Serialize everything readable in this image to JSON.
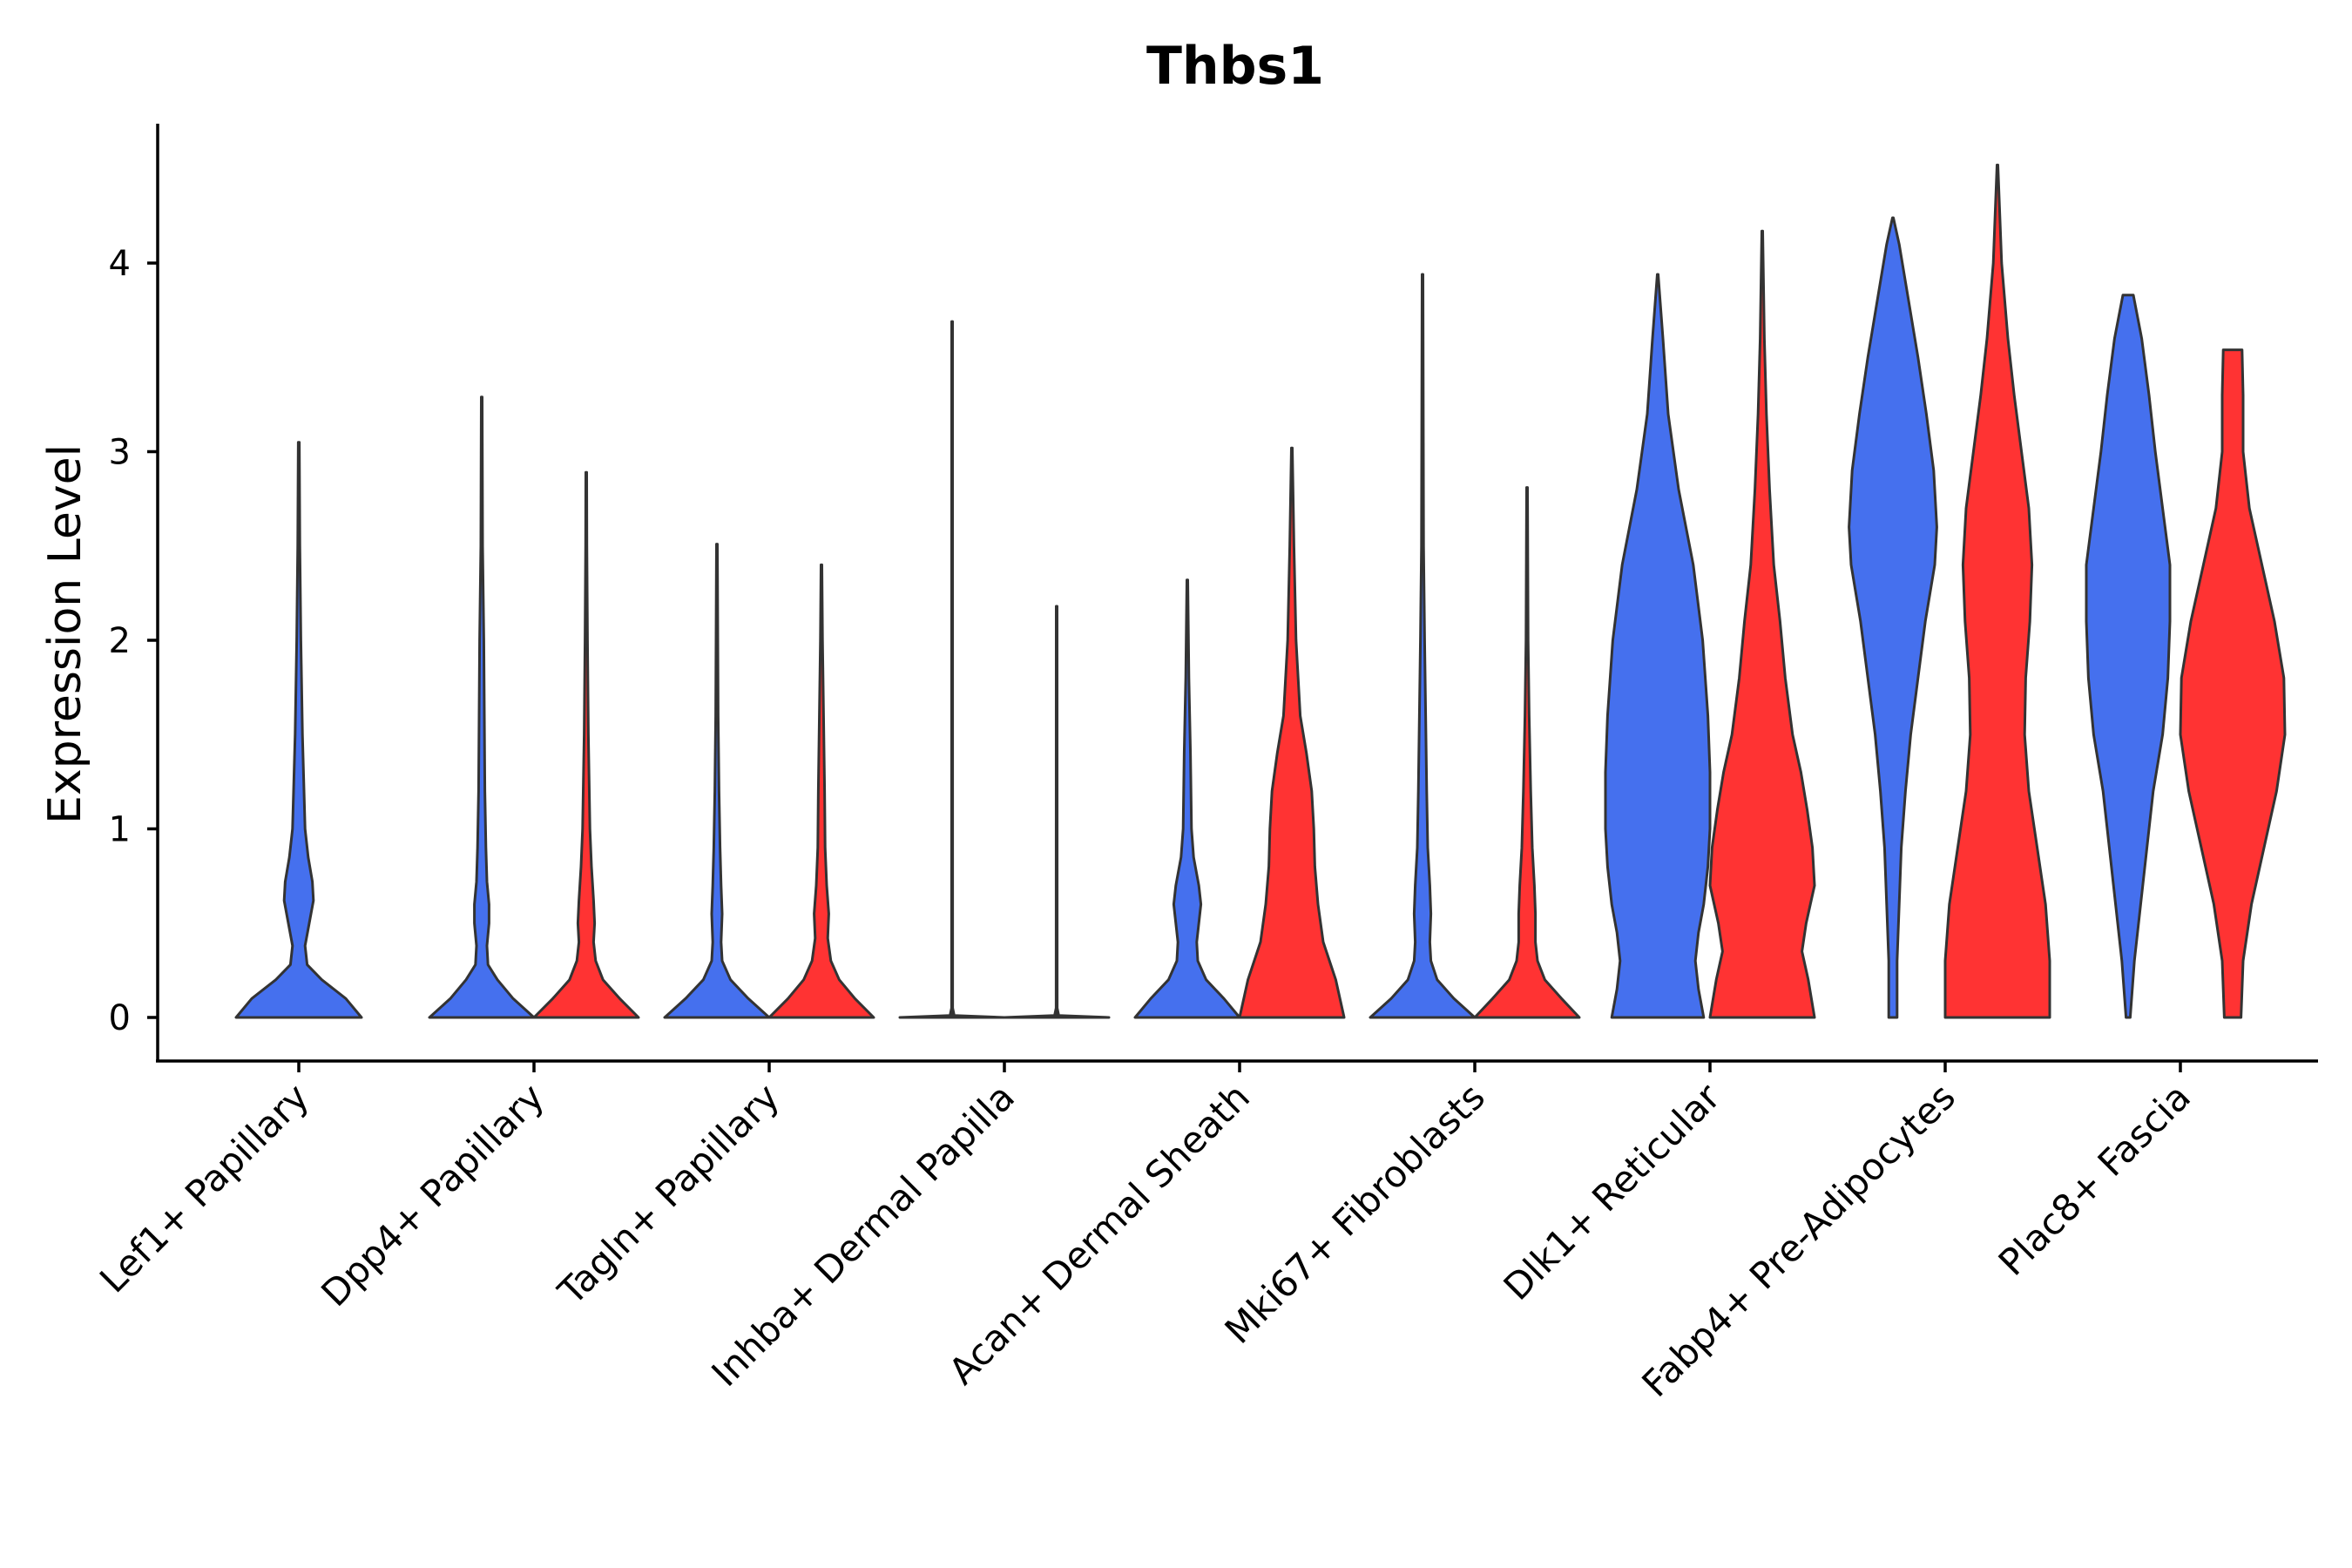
{
  "chart_data": {
    "type": "violin",
    "title": "Thbs1",
    "xlabel": "",
    "ylabel": "Expression Level",
    "ylim": [
      -0.23,
      4.75
    ],
    "yticks": [
      0,
      1,
      2,
      3,
      4
    ],
    "grid": false,
    "legend": "none",
    "colors": {
      "blue": "#4570ee",
      "red": "#ff3333",
      "outline": "#333333"
    },
    "categories": [
      "Lef1+ Papillary",
      "Dpp4+ Papillary",
      "Tagln+ Papillary",
      "Inhba+ Dermal Papilla",
      "Acan+ Dermal Sheath",
      "Mki67+ Fibroblasts",
      "Dlk1+ Reticular",
      "Fabp4+ Pre-Adipocytes",
      "Plac8+ Fascia"
    ],
    "violins": [
      {
        "category": "Lef1+ Papillary",
        "group": "blue",
        "max": 3.05,
        "profile": [
          [
            0,
            0.6
          ],
          [
            0.1,
            0.45
          ],
          [
            0.2,
            0.22
          ],
          [
            0.28,
            0.08
          ],
          [
            0.38,
            0.06
          ],
          [
            0.5,
            0.1
          ],
          [
            0.62,
            0.14
          ],
          [
            0.72,
            0.13
          ],
          [
            0.85,
            0.09
          ],
          [
            1.0,
            0.06
          ],
          [
            1.2,
            0.05
          ],
          [
            1.5,
            0.035
          ],
          [
            2.0,
            0.02
          ],
          [
            2.5,
            0.01
          ],
          [
            3.05,
            0.005
          ]
        ]
      },
      {
        "category": "Dpp4+ Papillary",
        "group": "blue",
        "max": 3.29,
        "profile": [
          [
            0,
            0.5
          ],
          [
            0.1,
            0.3
          ],
          [
            0.2,
            0.15
          ],
          [
            0.28,
            0.06
          ],
          [
            0.38,
            0.05
          ],
          [
            0.5,
            0.07
          ],
          [
            0.6,
            0.07
          ],
          [
            0.72,
            0.05
          ],
          [
            0.9,
            0.04
          ],
          [
            1.2,
            0.03
          ],
          [
            1.6,
            0.025
          ],
          [
            2.0,
            0.02
          ],
          [
            2.5,
            0.008
          ],
          [
            3.29,
            0.004
          ]
        ]
      },
      {
        "category": "Dpp4+ Papillary",
        "group": "red",
        "max": 2.89,
        "profile": [
          [
            0,
            0.5
          ],
          [
            0.1,
            0.32
          ],
          [
            0.2,
            0.16
          ],
          [
            0.3,
            0.09
          ],
          [
            0.4,
            0.07
          ],
          [
            0.5,
            0.08
          ],
          [
            0.62,
            0.07
          ],
          [
            0.8,
            0.05
          ],
          [
            1.0,
            0.035
          ],
          [
            1.5,
            0.02
          ],
          [
            2.0,
            0.012
          ],
          [
            2.5,
            0.006
          ],
          [
            2.89,
            0.004
          ]
        ]
      },
      {
        "category": "Tagln+ Papillary",
        "group": "blue",
        "max": 2.51,
        "profile": [
          [
            0,
            0.5
          ],
          [
            0.1,
            0.3
          ],
          [
            0.2,
            0.13
          ],
          [
            0.3,
            0.05
          ],
          [
            0.4,
            0.04
          ],
          [
            0.55,
            0.05
          ],
          [
            0.7,
            0.04
          ],
          [
            0.9,
            0.03
          ],
          [
            1.2,
            0.02
          ],
          [
            1.6,
            0.012
          ],
          [
            2.0,
            0.008
          ],
          [
            2.51,
            0.004
          ]
        ]
      },
      {
        "category": "Tagln+ Papillary",
        "group": "red",
        "max": 2.4,
        "profile": [
          [
            0,
            0.5
          ],
          [
            0.1,
            0.32
          ],
          [
            0.2,
            0.17
          ],
          [
            0.3,
            0.09
          ],
          [
            0.42,
            0.06
          ],
          [
            0.55,
            0.07
          ],
          [
            0.7,
            0.05
          ],
          [
            0.9,
            0.035
          ],
          [
            1.2,
            0.03
          ],
          [
            1.6,
            0.02
          ],
          [
            2.0,
            0.01
          ],
          [
            2.4,
            0.004
          ]
        ]
      },
      {
        "category": "Inhba+ Dermal Papilla",
        "group": "blue",
        "max": 3.69,
        "profile": [
          [
            0,
            0.5
          ],
          [
            0.01,
            0.02
          ],
          [
            0.05,
            0.005
          ],
          [
            3.69,
            0.004
          ]
        ]
      },
      {
        "category": "Inhba+ Dermal Papilla",
        "group": "red",
        "max": 2.18,
        "profile": [
          [
            0,
            0.5
          ],
          [
            0.01,
            0.02
          ],
          [
            0.05,
            0.005
          ],
          [
            2.18,
            0.004
          ]
        ]
      },
      {
        "category": "Acan+ Dermal Sheath",
        "group": "blue",
        "max": 2.32,
        "profile": [
          [
            0,
            0.5
          ],
          [
            0.1,
            0.35
          ],
          [
            0.2,
            0.18
          ],
          [
            0.3,
            0.1
          ],
          [
            0.4,
            0.09
          ],
          [
            0.5,
            0.11
          ],
          [
            0.6,
            0.13
          ],
          [
            0.7,
            0.11
          ],
          [
            0.85,
            0.06
          ],
          [
            1.0,
            0.04
          ],
          [
            1.4,
            0.03
          ],
          [
            1.8,
            0.015
          ],
          [
            2.32,
            0.004
          ]
        ]
      },
      {
        "category": "Acan+ Dermal Sheath",
        "group": "red",
        "max": 3.02,
        "profile": [
          [
            0,
            0.5
          ],
          [
            0.2,
            0.42
          ],
          [
            0.4,
            0.3
          ],
          [
            0.6,
            0.25
          ],
          [
            0.8,
            0.22
          ],
          [
            1.0,
            0.21
          ],
          [
            1.2,
            0.19
          ],
          [
            1.4,
            0.14
          ],
          [
            1.6,
            0.08
          ],
          [
            2.0,
            0.04
          ],
          [
            2.5,
            0.02
          ],
          [
            3.02,
            0.004
          ]
        ]
      },
      {
        "category": "Mki67+ Fibroblasts",
        "group": "blue",
        "max": 3.94,
        "profile": [
          [
            0,
            0.5
          ],
          [
            0.1,
            0.3
          ],
          [
            0.2,
            0.14
          ],
          [
            0.3,
            0.08
          ],
          [
            0.4,
            0.07
          ],
          [
            0.55,
            0.08
          ],
          [
            0.7,
            0.07
          ],
          [
            0.9,
            0.05
          ],
          [
            1.2,
            0.04
          ],
          [
            1.6,
            0.03
          ],
          [
            2.0,
            0.02
          ],
          [
            2.5,
            0.01
          ],
          [
            3.94,
            0.004
          ]
        ]
      },
      {
        "category": "Mki67+ Fibroblasts",
        "group": "red",
        "max": 2.81,
        "profile": [
          [
            0,
            0.5
          ],
          [
            0.1,
            0.33
          ],
          [
            0.2,
            0.17
          ],
          [
            0.3,
            0.1
          ],
          [
            0.4,
            0.08
          ],
          [
            0.55,
            0.08
          ],
          [
            0.7,
            0.07
          ],
          [
            0.9,
            0.05
          ],
          [
            1.2,
            0.035
          ],
          [
            1.6,
            0.02
          ],
          [
            2.0,
            0.01
          ],
          [
            2.81,
            0.004
          ]
        ]
      },
      {
        "category": "Dlk1+ Reticular",
        "group": "blue",
        "max": 3.94,
        "profile": [
          [
            0,
            0.44
          ],
          [
            0.15,
            0.39
          ],
          [
            0.3,
            0.36
          ],
          [
            0.45,
            0.39
          ],
          [
            0.6,
            0.44
          ],
          [
            0.8,
            0.48
          ],
          [
            1.0,
            0.5
          ],
          [
            1.3,
            0.5
          ],
          [
            1.6,
            0.48
          ],
          [
            2.0,
            0.43
          ],
          [
            2.4,
            0.34
          ],
          [
            2.8,
            0.2
          ],
          [
            3.2,
            0.1
          ],
          [
            3.6,
            0.05
          ],
          [
            3.94,
            0.004
          ]
        ]
      },
      {
        "category": "Dlk1+ Reticular",
        "group": "red",
        "max": 4.17,
        "profile": [
          [
            0,
            0.5
          ],
          [
            0.2,
            0.44
          ],
          [
            0.35,
            0.38
          ],
          [
            0.5,
            0.42
          ],
          [
            0.7,
            0.5
          ],
          [
            0.9,
            0.48
          ],
          [
            1.1,
            0.43
          ],
          [
            1.3,
            0.37
          ],
          [
            1.5,
            0.29
          ],
          [
            1.8,
            0.22
          ],
          [
            2.1,
            0.17
          ],
          [
            2.4,
            0.11
          ],
          [
            2.8,
            0.07
          ],
          [
            3.2,
            0.04
          ],
          [
            3.6,
            0.02
          ],
          [
            4.17,
            0.004
          ]
        ]
      },
      {
        "category": "Fabp4+ Pre-Adipocytes",
        "group": "blue",
        "max": 4.24,
        "profile": [
          [
            0,
            0.04
          ],
          [
            0.3,
            0.04
          ],
          [
            0.6,
            0.06
          ],
          [
            0.9,
            0.08
          ],
          [
            1.2,
            0.12
          ],
          [
            1.5,
            0.17
          ],
          [
            1.8,
            0.24
          ],
          [
            2.1,
            0.31
          ],
          [
            2.4,
            0.4
          ],
          [
            2.6,
            0.42
          ],
          [
            2.9,
            0.39
          ],
          [
            3.2,
            0.32
          ],
          [
            3.5,
            0.24
          ],
          [
            3.8,
            0.15
          ],
          [
            4.1,
            0.06
          ],
          [
            4.24,
            0.004
          ]
        ]
      },
      {
        "category": "Fabp4+ Pre-Adipocytes",
        "group": "red",
        "max": 4.52,
        "profile": [
          [
            0,
            0.5
          ],
          [
            0.3,
            0.5
          ],
          [
            0.6,
            0.46
          ],
          [
            0.9,
            0.38
          ],
          [
            1.2,
            0.3
          ],
          [
            1.5,
            0.26
          ],
          [
            1.8,
            0.27
          ],
          [
            2.1,
            0.31
          ],
          [
            2.4,
            0.33
          ],
          [
            2.7,
            0.3
          ],
          [
            3.0,
            0.23
          ],
          [
            3.3,
            0.16
          ],
          [
            3.6,
            0.1
          ],
          [
            4.0,
            0.04
          ],
          [
            4.52,
            0.004
          ]
        ]
      },
      {
        "category": "Plac8+ Fascia",
        "group": "blue",
        "max": 3.83,
        "profile": [
          [
            0,
            0.02
          ],
          [
            0.3,
            0.06
          ],
          [
            0.6,
            0.12
          ],
          [
            0.9,
            0.18
          ],
          [
            1.2,
            0.24
          ],
          [
            1.5,
            0.33
          ],
          [
            1.8,
            0.38
          ],
          [
            2.1,
            0.4
          ],
          [
            2.4,
            0.4
          ],
          [
            2.7,
            0.33
          ],
          [
            3.0,
            0.26
          ],
          [
            3.3,
            0.2
          ],
          [
            3.6,
            0.13
          ],
          [
            3.83,
            0.05
          ]
        ]
      },
      {
        "category": "Plac8+ Fascia",
        "group": "red",
        "max": 3.54,
        "profile": [
          [
            0,
            0.08
          ],
          [
            0.3,
            0.1
          ],
          [
            0.6,
            0.18
          ],
          [
            0.9,
            0.3
          ],
          [
            1.2,
            0.42
          ],
          [
            1.5,
            0.5
          ],
          [
            1.8,
            0.49
          ],
          [
            2.1,
            0.4
          ],
          [
            2.4,
            0.28
          ],
          [
            2.7,
            0.16
          ],
          [
            3.0,
            0.1
          ],
          [
            3.3,
            0.1
          ],
          [
            3.54,
            0.09
          ]
        ]
      }
    ]
  }
}
